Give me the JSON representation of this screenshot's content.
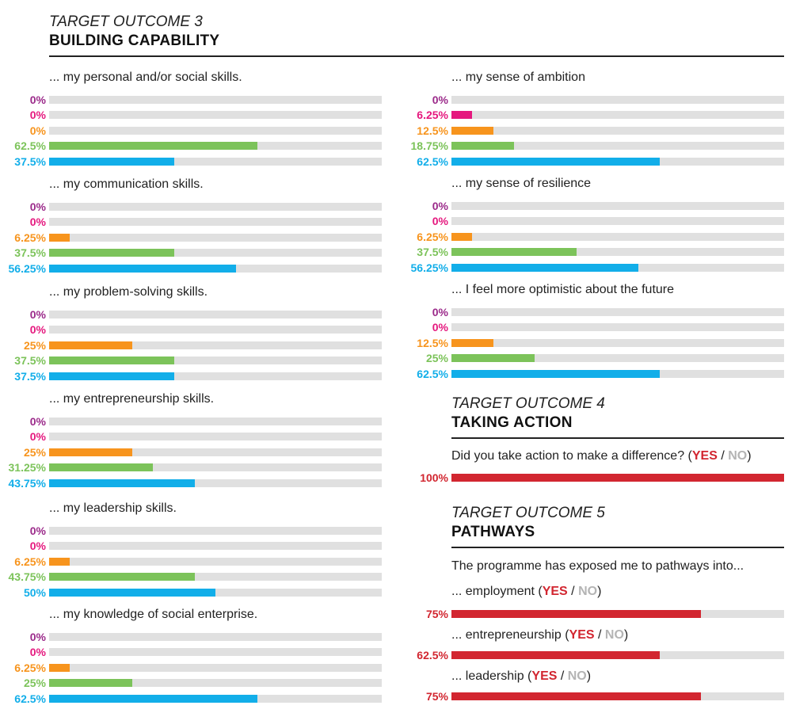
{
  "colors": {
    "purple": "#9b2a8a",
    "magenta": "#e5187e",
    "orange": "#f7941d",
    "green": "#7cc35a",
    "blue": "#12aee9",
    "red": "#d22630",
    "track": "#e0e0e0",
    "no_grey": "#b4b4b4"
  },
  "outcome3": {
    "kicker": "TARGET OUTCOME 3",
    "title": "BUILDING CAPABILITY"
  },
  "outcome4": {
    "kicker": "TARGET OUTCOME 4",
    "title": "TAKING ACTION",
    "question": "Did you take action to make a difference? (",
    "yes": "YES",
    "slash": " / ",
    "no": "NO",
    "close": ")"
  },
  "outcome5": {
    "kicker": "TARGET OUTCOME 5",
    "title": "PATHWAYS",
    "intro": "The programme has exposed me to pathways into..."
  },
  "chart_data": [
    {
      "type": "bar",
      "orientation": "horizontal",
      "title": "... my personal and/or social skills.",
      "labels": [
        "0%",
        "0%",
        "0%",
        "62.5%",
        "37.5%"
      ],
      "values": [
        0,
        0,
        0,
        62.5,
        37.5
      ],
      "colors": [
        "purple",
        "magenta",
        "orange",
        "green",
        "blue"
      ],
      "xlim": [
        0,
        100
      ]
    },
    {
      "type": "bar",
      "orientation": "horizontal",
      "title": "... my communication skills.",
      "labels": [
        "0%",
        "0%",
        "6.25%",
        "37.5%",
        "56.25%"
      ],
      "values": [
        0,
        0,
        6.25,
        37.5,
        56.25
      ],
      "colors": [
        "purple",
        "magenta",
        "orange",
        "green",
        "blue"
      ],
      "xlim": [
        0,
        100
      ]
    },
    {
      "type": "bar",
      "orientation": "horizontal",
      "title": "... my problem-solving skills.",
      "labels": [
        "0%",
        "0%",
        "25%",
        "37.5%",
        "37.5%"
      ],
      "values": [
        0,
        0,
        25,
        37.5,
        37.5
      ],
      "colors": [
        "purple",
        "magenta",
        "orange",
        "green",
        "blue"
      ],
      "xlim": [
        0,
        100
      ]
    },
    {
      "type": "bar",
      "orientation": "horizontal",
      "title": "... my entrepreneurship skills.",
      "labels": [
        "0%",
        "0%",
        "25%",
        "31.25%",
        "43.75%"
      ],
      "values": [
        0,
        0,
        25,
        31.25,
        43.75
      ],
      "colors": [
        "purple",
        "magenta",
        "orange",
        "green",
        "blue"
      ],
      "xlim": [
        0,
        100
      ]
    },
    {
      "type": "bar",
      "orientation": "horizontal",
      "title": "... my leadership skills.",
      "labels": [
        "0%",
        "0%",
        "6.25%",
        "43.75%",
        "50%"
      ],
      "values": [
        0,
        0,
        6.25,
        43.75,
        50
      ],
      "colors": [
        "purple",
        "magenta",
        "orange",
        "green",
        "blue"
      ],
      "xlim": [
        0,
        100
      ]
    },
    {
      "type": "bar",
      "orientation": "horizontal",
      "title": "... my knowledge of social enterprise.",
      "labels": [
        "0%",
        "0%",
        "6.25%",
        "25%",
        "62.5%"
      ],
      "values": [
        0,
        0,
        6.25,
        25,
        62.5
      ],
      "colors": [
        "purple",
        "magenta",
        "orange",
        "green",
        "blue"
      ],
      "xlim": [
        0,
        100
      ]
    },
    {
      "type": "bar",
      "orientation": "horizontal",
      "title": "... my sense of ambition",
      "labels": [
        "0%",
        "6.25%",
        "12.5%",
        "18.75%",
        "62.5%"
      ],
      "values": [
        0,
        6.25,
        12.5,
        18.75,
        62.5
      ],
      "colors": [
        "purple",
        "magenta",
        "orange",
        "green",
        "blue"
      ],
      "xlim": [
        0,
        100
      ]
    },
    {
      "type": "bar",
      "orientation": "horizontal",
      "title": "... my sense of resilience",
      "labels": [
        "0%",
        "0%",
        "6.25%",
        "37.5%",
        "56.25%"
      ],
      "values": [
        0,
        0,
        6.25,
        37.5,
        56.25
      ],
      "colors": [
        "purple",
        "magenta",
        "orange",
        "green",
        "blue"
      ],
      "xlim": [
        0,
        100
      ]
    },
    {
      "type": "bar",
      "orientation": "horizontal",
      "title": "... I feel more optimistic about the future",
      "labels": [
        "0%",
        "0%",
        "12.5%",
        "25%",
        "62.5%"
      ],
      "values": [
        0,
        0,
        12.5,
        25,
        62.5
      ],
      "colors": [
        "purple",
        "magenta",
        "orange",
        "green",
        "blue"
      ],
      "xlim": [
        0,
        100
      ]
    },
    {
      "type": "bar",
      "orientation": "horizontal",
      "title": "Did you take action to make a difference?",
      "labels": [
        "100%"
      ],
      "values": [
        100
      ],
      "colors": [
        "red"
      ],
      "xlim": [
        0,
        100
      ]
    },
    {
      "type": "bar",
      "orientation": "horizontal",
      "title": "... employment (YES / NO)",
      "title_prefix": "... employment (",
      "labels": [
        "75%"
      ],
      "values": [
        75
      ],
      "colors": [
        "red"
      ],
      "xlim": [
        0,
        100
      ]
    },
    {
      "type": "bar",
      "orientation": "horizontal",
      "title": "... entrepreneurship (YES / NO)",
      "title_prefix": "... entrepreneurship (",
      "labels": [
        "62.5%"
      ],
      "values": [
        62.5
      ],
      "colors": [
        "red"
      ],
      "xlim": [
        0,
        100
      ]
    },
    {
      "type": "bar",
      "orientation": "horizontal",
      "title": "... leadership (YES / NO)",
      "title_prefix": "... leadership (",
      "labels": [
        "75%"
      ],
      "values": [
        75
      ],
      "colors": [
        "red"
      ],
      "xlim": [
        0,
        100
      ]
    }
  ]
}
